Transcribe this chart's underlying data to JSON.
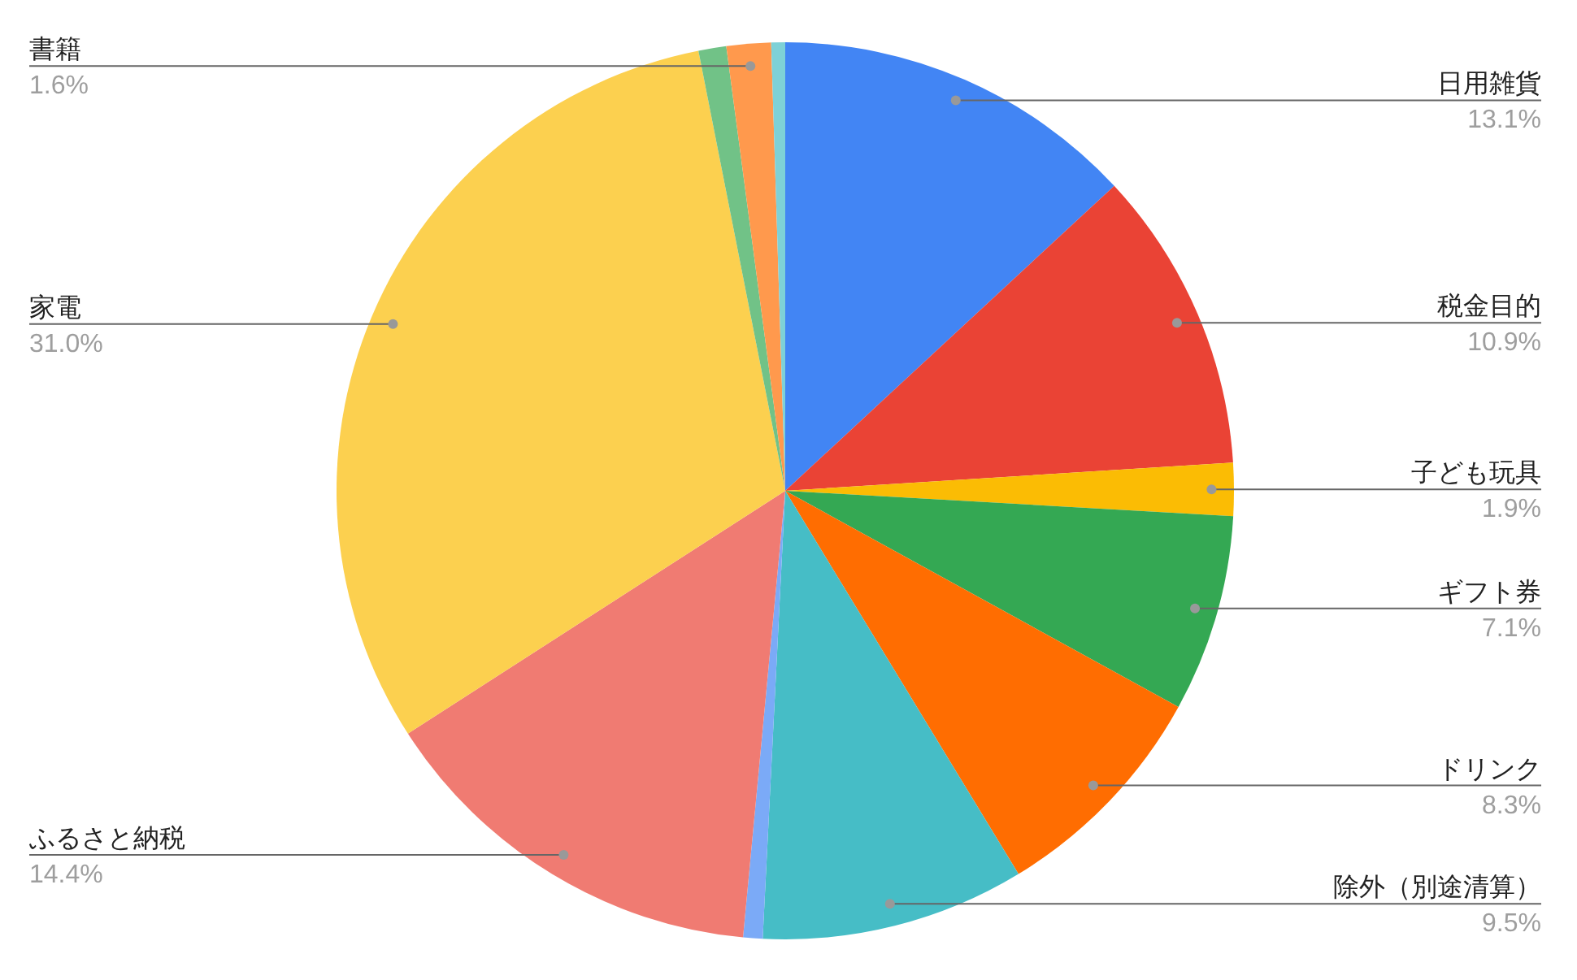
{
  "chart_data": {
    "type": "pie",
    "categories": [
      "日用雑貨",
      "税金目的",
      "子ども玩具",
      "ギフト券",
      "ドリンク",
      "除外（別途清算）",
      null,
      "ふるさと納税",
      "家電",
      null,
      "書籍",
      null
    ],
    "values": [
      13.1,
      10.9,
      1.9,
      7.1,
      8.3,
      9.5,
      0.7,
      14.4,
      31.0,
      1.0,
      1.6,
      0.5
    ],
    "value_labels": [
      "13.1%",
      "10.9%",
      "1.9%",
      "7.1%",
      "8.3%",
      "9.5%",
      null,
      "14.4%",
      "31.0%",
      null,
      "1.6%",
      null
    ],
    "colors": [
      "#4285f4",
      "#ea4335",
      "#fbbc04",
      "#34a853",
      "#ff6d01",
      "#46bdc6",
      "#7baaf7",
      "#f07b72",
      "#fcd04f",
      "#71c287",
      "#ff994d",
      "#7ed1d7"
    ]
  }
}
